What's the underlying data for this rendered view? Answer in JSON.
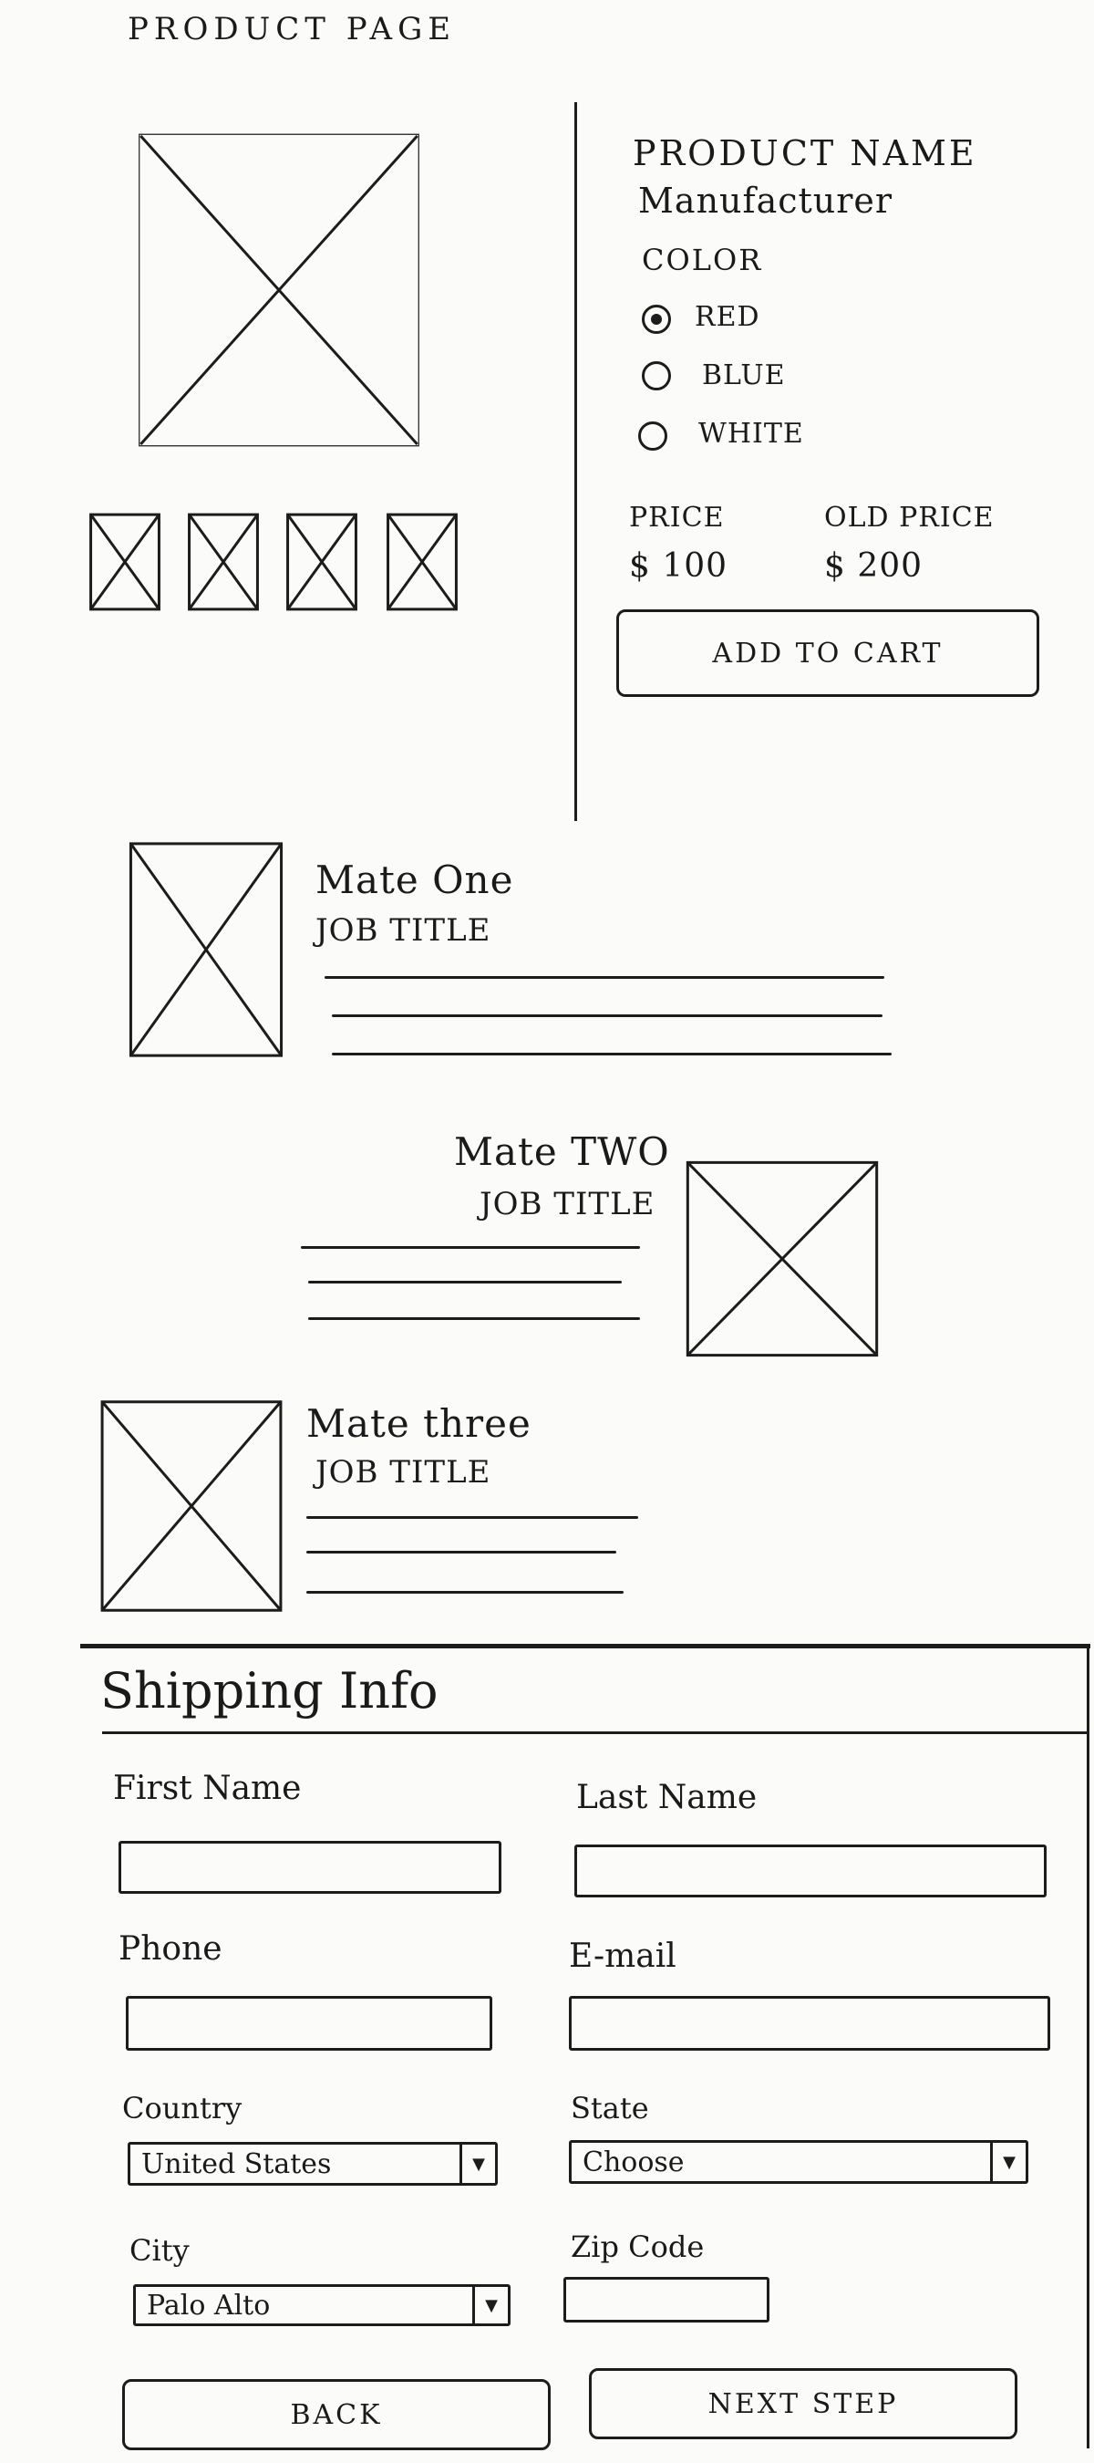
{
  "product": {
    "page_title": "PRODUCT PAGE",
    "name": "PRODUCT NAME",
    "manufacturer": "Manufacturer",
    "color_label": "COLOR",
    "colors": [
      {
        "label": "RED",
        "selected": true
      },
      {
        "label": "BLUE",
        "selected": false
      },
      {
        "label": "WHITE",
        "selected": false
      }
    ],
    "price_label": "PRICE",
    "price": "$ 100",
    "old_price_label": "OLD PRICE",
    "old_price": "$ 200",
    "add_to_cart": "ADD TO CART"
  },
  "team": {
    "members": [
      {
        "name": "Mate One",
        "title": "JOB TITLE"
      },
      {
        "name": "Mate TWO",
        "title": "JOB TITLE"
      },
      {
        "name": "Mate three",
        "title": "JOB TITLE"
      }
    ]
  },
  "shipping": {
    "title": "Shipping Info",
    "first_name_label": "First Name",
    "last_name_label": "Last Name",
    "phone_label": "Phone",
    "email_label": "E-mail",
    "country_label": "Country",
    "country_value": "United States",
    "state_label": "State",
    "state_value": "Choose",
    "city_label": "City",
    "city_value": "Palo Alto",
    "zip_label": "Zip Code",
    "back": "BACK",
    "next": "NEXT STEP"
  }
}
